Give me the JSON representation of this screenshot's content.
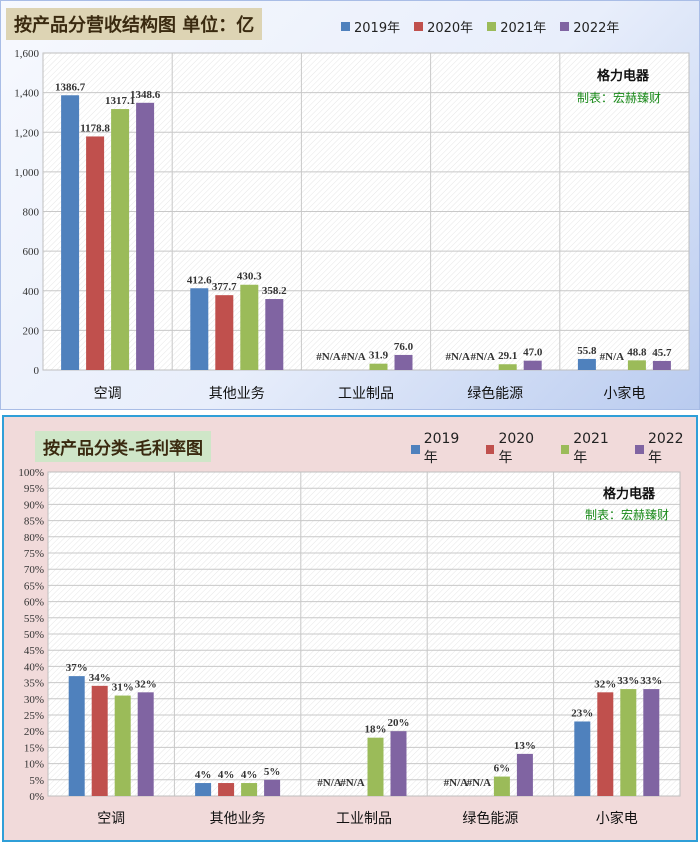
{
  "colors": {
    "s2019": "#4f81bd",
    "s2020": "#c0504d",
    "s2021": "#9bbb59",
    "s2022": "#8064a2"
  },
  "chart_data": [
    {
      "type": "bar",
      "title": "按产品分营收结构图 单位：亿",
      "brand": "格力电器",
      "credit": "制表：宏赫臻财",
      "categories": [
        "空调",
        "其他业务",
        "工业制品",
        "绿色能源",
        "小家电"
      ],
      "series": [
        {
          "name": "2019年",
          "values": [
            1386.7,
            412.6,
            null,
            null,
            55.8
          ]
        },
        {
          "name": "2020年",
          "values": [
            1178.8,
            377.7,
            null,
            null,
            null
          ]
        },
        {
          "name": "2021年",
          "values": [
            1317.1,
            430.3,
            31.9,
            29.1,
            48.8
          ]
        },
        {
          "name": "2022年",
          "values": [
            1348.6,
            358.2,
            76.0,
            47.0,
            45.7
          ]
        }
      ],
      "ylim": [
        0,
        1600
      ],
      "yticks": [
        "0",
        "200",
        "400",
        "600",
        "800",
        "1,000",
        "1,200",
        "1,400",
        "1,600"
      ],
      "na_label": "#N/A",
      "grid": true,
      "legend_position": "top"
    },
    {
      "type": "bar",
      "title": "按产品分类-毛利率图",
      "brand": "格力电器",
      "credit": "制表：宏赫臻财",
      "categories": [
        "空调",
        "其他业务",
        "工业制品",
        "绿色能源",
        "小家电"
      ],
      "series": [
        {
          "name": "2019年",
          "values": [
            37,
            4,
            null,
            null,
            23
          ]
        },
        {
          "name": "2020年",
          "values": [
            34,
            4,
            null,
            null,
            32
          ]
        },
        {
          "name": "2021年",
          "values": [
            31,
            4,
            18,
            6,
            33
          ]
        },
        {
          "name": "2022年",
          "values": [
            32,
            5,
            20,
            13,
            33
          ]
        }
      ],
      "unit": "%",
      "ylim": [
        0,
        100
      ],
      "yticks": [
        "0%",
        "5%",
        "10%",
        "15%",
        "20%",
        "25%",
        "30%",
        "35%",
        "40%",
        "45%",
        "50%",
        "55%",
        "60%",
        "65%",
        "70%",
        "75%",
        "80%",
        "85%",
        "90%",
        "95%",
        "100%"
      ],
      "na_label": "#N/A",
      "grid": true,
      "legend_position": "top-right"
    }
  ]
}
